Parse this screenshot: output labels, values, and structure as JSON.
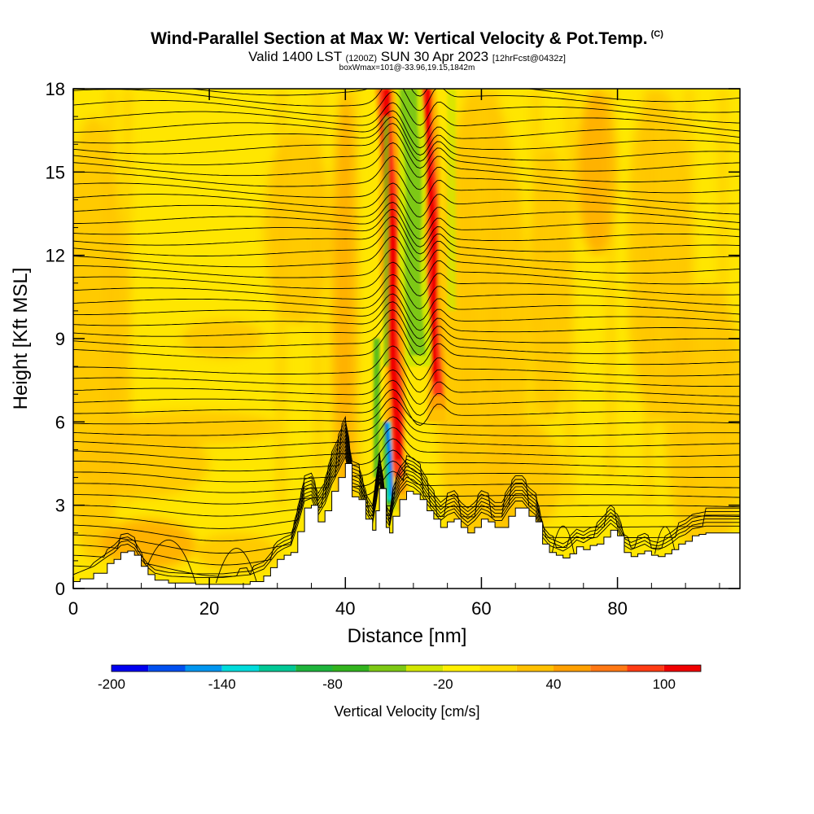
{
  "chart_data": {
    "type": "heatmap",
    "title": "Wind-Parallel Section at Max W: Vertical Velocity & Pot.Temp.",
    "title_mark": "(C)",
    "subtitle_a": "Valid 1400 LST",
    "subtitle_b": "(1200Z)",
    "subtitle_c": "SUN 30 Apr 2023",
    "subtitle_d": "[12hrFcst@0432z]",
    "subtitle2": "boxWmax=101@-33.96,19.15,1842m",
    "xlabel": "Distance [nm]",
    "ylabel": "Height [Kft MSL]",
    "xlim": [
      0,
      98
    ],
    "ylim": [
      0,
      18
    ],
    "x_ticks": [
      "0",
      "20",
      "40",
      "60",
      "80"
    ],
    "y_ticks": [
      "0",
      "3",
      "6",
      "9",
      "12",
      "15",
      "18"
    ],
    "x_tick_values": [
      0,
      20,
      40,
      60,
      80
    ],
    "y_tick_values": [
      0,
      3,
      6,
      9,
      12,
      15,
      18
    ],
    "colorbar": {
      "title": "Vertical Velocity [cm/s]",
      "labels": [
        "-200",
        "-140",
        "-80",
        "-20",
        "40",
        "100"
      ],
      "label_values": [
        -200,
        -140,
        -80,
        -20,
        40,
        100
      ],
      "boundaries": [
        -200,
        -180,
        -160,
        -140,
        -120,
        -100,
        -80,
        -60,
        -40,
        -20,
        0,
        20,
        40,
        60,
        80,
        100,
        120
      ],
      "colors": [
        "#0000f0",
        "#0050f0",
        "#0096f0",
        "#00dcdc",
        "#00c896",
        "#1eb43c",
        "#32b41e",
        "#7dc814",
        "#d2e600",
        "#fff000",
        "#ffdc00",
        "#ffc000",
        "#ffa000",
        "#ff7814",
        "#ff3c14",
        "#f00000",
        "#b4003c"
      ]
    },
    "terrain_kft": [
      [
        0,
        0.25
      ],
      [
        1,
        0.35
      ],
      [
        3,
        0.55
      ],
      [
        5,
        0.9
      ],
      [
        6,
        1.05
      ],
      [
        7,
        1.3
      ],
      [
        8,
        1.35
      ],
      [
        9,
        1.2
      ],
      [
        10,
        0.8
      ],
      [
        11,
        0.5
      ],
      [
        12,
        0.3
      ],
      [
        14,
        0.2
      ],
      [
        18,
        0.15
      ],
      [
        22,
        0.15
      ],
      [
        26,
        0.25
      ],
      [
        28,
        0.45
      ],
      [
        29,
        0.75
      ],
      [
        30,
        1.05
      ],
      [
        31,
        1.2
      ],
      [
        32,
        1.3
      ],
      [
        33,
        2.05
      ],
      [
        34,
        2.9
      ],
      [
        35,
        3.0
      ],
      [
        36,
        2.4
      ],
      [
        37,
        2.8
      ],
      [
        38,
        3.5
      ],
      [
        39,
        4.0
      ],
      [
        40,
        4.5
      ],
      [
        41,
        3.3
      ],
      [
        42,
        3.2
      ],
      [
        43,
        2.5
      ],
      [
        44,
        2.1
      ],
      [
        44.5,
        2.8
      ],
      [
        45,
        3.6
      ],
      [
        46,
        2.2
      ],
      [
        46.5,
        2.0
      ],
      [
        47,
        2.6
      ],
      [
        48,
        3.2
      ],
      [
        49,
        3.5
      ],
      [
        50,
        3.4
      ],
      [
        51,
        3.2
      ],
      [
        52,
        2.8
      ],
      [
        53,
        2.5
      ],
      [
        54,
        2.2
      ],
      [
        55,
        2.4
      ],
      [
        56,
        2.5
      ],
      [
        57,
        2.2
      ],
      [
        58,
        2.0
      ],
      [
        59,
        2.2
      ],
      [
        60,
        2.5
      ],
      [
        61,
        2.4
      ],
      [
        62,
        2.2
      ],
      [
        63,
        2.2
      ],
      [
        64,
        2.6
      ],
      [
        65,
        2.9
      ],
      [
        66,
        2.9
      ],
      [
        67,
        2.6
      ],
      [
        68,
        2.4
      ],
      [
        69,
        1.6
      ],
      [
        70,
        1.3
      ],
      [
        71,
        1.2
      ],
      [
        72,
        1.1
      ],
      [
        73,
        1.25
      ],
      [
        74,
        1.5
      ],
      [
        75,
        1.4
      ],
      [
        76,
        1.55
      ],
      [
        77,
        1.6
      ],
      [
        78,
        1.85
      ],
      [
        79,
        2.1
      ],
      [
        80,
        1.9
      ],
      [
        81,
        1.3
      ],
      [
        82,
        1.15
      ],
      [
        83,
        1.25
      ],
      [
        84,
        1.35
      ],
      [
        85,
        1.2
      ],
      [
        86,
        1.15
      ],
      [
        87,
        1.25
      ],
      [
        88,
        1.4
      ],
      [
        89,
        1.6
      ],
      [
        90,
        1.7
      ],
      [
        91,
        1.9
      ],
      [
        92,
        1.95
      ],
      [
        93,
        2.0
      ],
      [
        94,
        2.0
      ],
      [
        95,
        2.0
      ],
      [
        96,
        2.0
      ],
      [
        97,
        2.0
      ],
      [
        98,
        2.0
      ]
    ],
    "w_features": [
      {
        "kind": "updraft",
        "x_nm": 47.2,
        "width_nm": 2.0,
        "z_range_kft": [
          2.8,
          18
        ],
        "w_cm_s": 100
      },
      {
        "kind": "updraft",
        "x_nm": 53.3,
        "width_nm": 1.7,
        "z_range_kft": [
          6,
          18
        ],
        "w_cm_s": 100
      },
      {
        "kind": "downdraft",
        "x_nm": 45.5,
        "width_nm": 1.2,
        "z_range_kft": [
          2.8,
          6
        ],
        "w_cm_s": -180
      },
      {
        "kind": "downdraft",
        "x_nm": 50.5,
        "width_nm": 3.0,
        "z_range_kft": [
          8,
          18
        ],
        "w_cm_s": -70
      }
    ],
    "contour_note": "potential temperature isentropes (labelled, unreadable values)"
  }
}
